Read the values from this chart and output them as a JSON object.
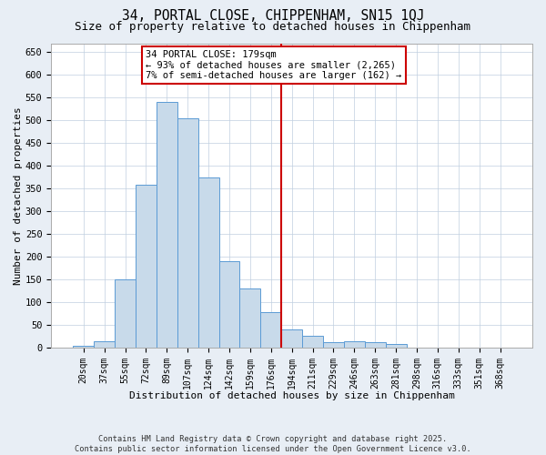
{
  "title": "34, PORTAL CLOSE, CHIPPENHAM, SN15 1QJ",
  "subtitle": "Size of property relative to detached houses in Chippenham",
  "xlabel": "Distribution of detached houses by size in Chippenham",
  "ylabel": "Number of detached properties",
  "categories": [
    "20sqm",
    "37sqm",
    "55sqm",
    "72sqm",
    "89sqm",
    "107sqm",
    "124sqm",
    "142sqm",
    "159sqm",
    "176sqm",
    "194sqm",
    "211sqm",
    "229sqm",
    "246sqm",
    "263sqm",
    "281sqm",
    "298sqm",
    "316sqm",
    "333sqm",
    "351sqm",
    "368sqm"
  ],
  "values": [
    5,
    15,
    150,
    358,
    540,
    505,
    375,
    190,
    130,
    78,
    40,
    27,
    12,
    14,
    13,
    8,
    0,
    0,
    0,
    0,
    0
  ],
  "bar_color": "#c8daea",
  "bar_edge_color": "#5b9bd5",
  "vline_color": "#cc0000",
  "vline_index": 9.5,
  "annotation_text": "34 PORTAL CLOSE: 179sqm\n← 93% of detached houses are smaller (2,265)\n7% of semi-detached houses are larger (162) →",
  "annotation_box_edge": "#cc0000",
  "annotation_box_fill": "#ffffff",
  "ylim": [
    0,
    670
  ],
  "yticks": [
    0,
    50,
    100,
    150,
    200,
    250,
    300,
    350,
    400,
    450,
    500,
    550,
    600,
    650
  ],
  "footer": "Contains HM Land Registry data © Crown copyright and database right 2025.\nContains public sector information licensed under the Open Government Licence v3.0.",
  "fig_bg_color": "#e8eef5",
  "plot_bg_color": "#ffffff",
  "grid_color": "#c0cfe0"
}
